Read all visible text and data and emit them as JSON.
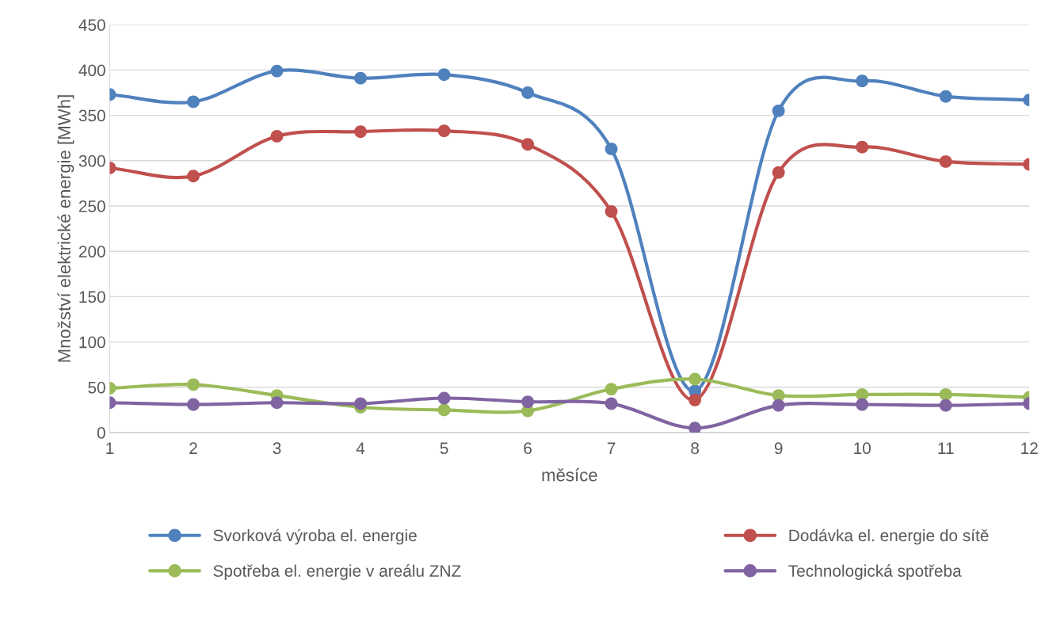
{
  "chart_data": {
    "type": "line",
    "xlabel": "měsíce",
    "ylabel": "Množství elektrické energie [MWh]",
    "x": [
      1,
      2,
      3,
      4,
      5,
      6,
      7,
      8,
      9,
      10,
      11,
      12
    ],
    "xlim": [
      1,
      12
    ],
    "xticks": [
      1,
      2,
      3,
      4,
      5,
      6,
      7,
      8,
      9,
      10,
      11,
      12
    ],
    "ylim": [
      0,
      450
    ],
    "yticks": [
      0,
      50,
      100,
      150,
      200,
      250,
      300,
      350,
      400,
      450
    ],
    "grid": "y",
    "legend": "bottom",
    "marker": "circle",
    "line_style": "solid",
    "series": [
      {
        "name": "Svorková výroba el. energie",
        "color": "#4f81bd",
        "values": [
          373,
          365,
          399,
          391,
          395,
          375,
          313,
          46,
          355,
          388,
          371,
          367
        ]
      },
      {
        "name": "Dodávka el. energie do sítě",
        "color": "#c0504d",
        "values": [
          292,
          283,
          327,
          332,
          333,
          318,
          244,
          36,
          287,
          315,
          299,
          296
        ]
      },
      {
        "name": "Spotřeba el. energie v areálu ZNZ",
        "color": "#9bbb59",
        "values": [
          49,
          53,
          41,
          28,
          25,
          24,
          48,
          59,
          41,
          42,
          42,
          39
        ]
      },
      {
        "name": "Technologická spotřeba",
        "color": "#8064a2",
        "values": [
          33,
          31,
          33,
          32,
          38,
          34,
          32,
          5,
          30,
          31,
          30,
          32
        ]
      }
    ]
  }
}
